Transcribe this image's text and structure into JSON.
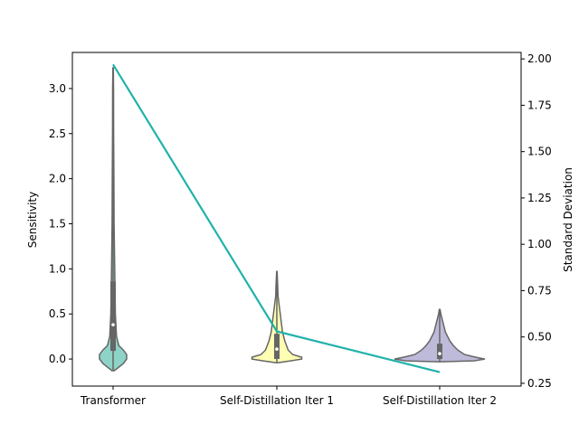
{
  "chart_data": {
    "type": "violin",
    "categories": [
      "Transformer",
      "Self-Distillation Iter 1",
      "Self-Distillation Iter 2"
    ],
    "ylabel_left": "Sensitivity",
    "ylabel_right": "Standard Deviation",
    "ylim_left": [
      -0.3,
      3.4
    ],
    "ylim_right": [
      0.235,
      2.035
    ],
    "yticks_left": [
      "0.0",
      "0.5",
      "1.0",
      "1.5",
      "2.0",
      "2.5",
      "3.0"
    ],
    "yticks_right": [
      "0.25",
      "0.50",
      "0.75",
      "1.00",
      "1.25",
      "1.50",
      "1.75",
      "2.00"
    ],
    "violins": [
      {
        "name": "Transformer",
        "color": "#8dd3c7",
        "profile": [
          [
            -0.13,
            0.01
          ],
          [
            -0.09,
            0.05
          ],
          [
            -0.05,
            0.09
          ],
          [
            0.0,
            0.12
          ],
          [
            0.05,
            0.12
          ],
          [
            0.1,
            0.09
          ],
          [
            0.15,
            0.05
          ],
          [
            0.25,
            0.03
          ],
          [
            0.5,
            0.02
          ],
          [
            1.0,
            0.014
          ],
          [
            1.5,
            0.009
          ],
          [
            2.0,
            0.007
          ],
          [
            2.5,
            0.005
          ],
          [
            3.0,
            0.004
          ],
          [
            3.23,
            0.002
          ]
        ],
        "q1": 0.09,
        "median": 0.38,
        "q3": 0.86,
        "whisker_low": -0.13,
        "whisker_high": 3.23
      },
      {
        "name": "Self-Distillation Iter 1",
        "color": "#ffffb3",
        "profile": [
          [
            -0.04,
            0.01
          ],
          [
            -0.02,
            0.12
          ],
          [
            0.0,
            0.22
          ],
          [
            0.02,
            0.22
          ],
          [
            0.05,
            0.14
          ],
          [
            0.1,
            0.1
          ],
          [
            0.2,
            0.07
          ],
          [
            0.3,
            0.05
          ],
          [
            0.4,
            0.04
          ],
          [
            0.5,
            0.03
          ],
          [
            0.6,
            0.02
          ],
          [
            0.7,
            0.01
          ],
          [
            0.8,
            0.008
          ],
          [
            0.97,
            0.002
          ]
        ],
        "q1": 0.0,
        "median": 0.11,
        "q3": 0.28,
        "whisker_low": -0.04,
        "whisker_high": 0.97
      },
      {
        "name": "Self-Distillation Iter 2",
        "color": "#bebada",
        "profile": [
          [
            -0.03,
            0.01
          ],
          [
            -0.02,
            0.3
          ],
          [
            0.0,
            0.4
          ],
          [
            0.02,
            0.32
          ],
          [
            0.05,
            0.22
          ],
          [
            0.1,
            0.16
          ],
          [
            0.15,
            0.12
          ],
          [
            0.2,
            0.09
          ],
          [
            0.3,
            0.05
          ],
          [
            0.4,
            0.03
          ],
          [
            0.5,
            0.01
          ],
          [
            0.55,
            0.003
          ]
        ],
        "q1": 0.0,
        "median": 0.06,
        "q3": 0.17,
        "whisker_low": -0.03,
        "whisker_high": 0.55
      }
    ],
    "std_line": {
      "color": "#20b2aa",
      "values": [
        1.97,
        0.53,
        0.31
      ]
    }
  }
}
